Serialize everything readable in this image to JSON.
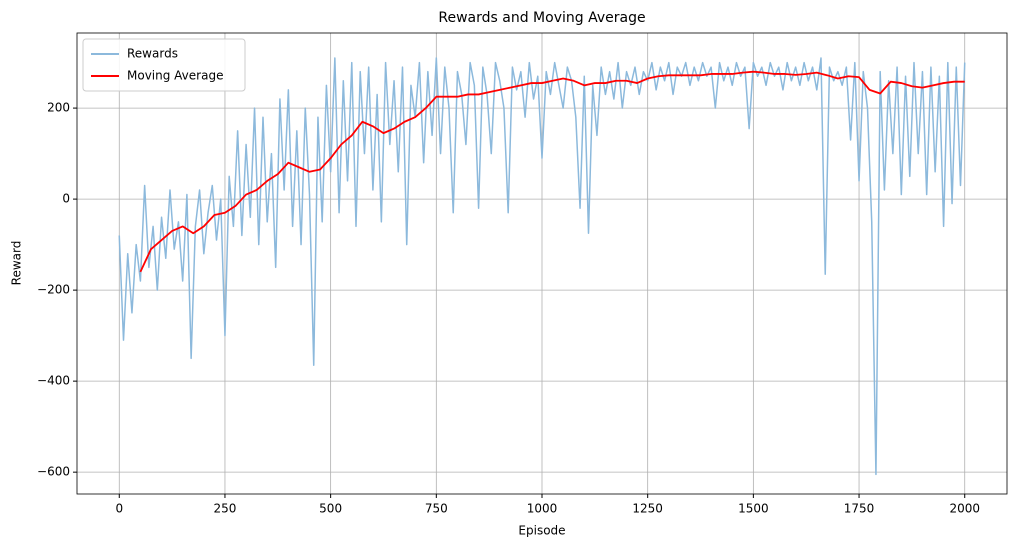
{
  "chart_data": {
    "type": "line",
    "title": "Rewards and Moving Average",
    "x_label": "Episode",
    "y_label": "Reward",
    "xlim": [
      -100,
      2100
    ],
    "ylim": [
      -648,
      365
    ],
    "xticks": [
      0,
      250,
      500,
      750,
      1000,
      1250,
      1500,
      1750,
      2000
    ],
    "yticks": [
      {
        "value": -600,
        "label": "−600"
      },
      {
        "value": -400,
        "label": "−400"
      },
      {
        "value": -200,
        "label": "−200"
      },
      0,
      200
    ],
    "grid": true,
    "legend": "upper-left",
    "series": [
      {
        "name": "Rewards",
        "color": "#8cb9dc",
        "x": [
          0,
          10,
          20,
          30,
          40,
          50,
          60,
          70,
          80,
          90,
          100,
          110,
          120,
          130,
          140,
          150,
          160,
          170,
          180,
          190,
          200,
          210,
          220,
          230,
          240,
          250,
          260,
          270,
          280,
          290,
          300,
          310,
          320,
          330,
          340,
          350,
          360,
          370,
          380,
          390,
          400,
          410,
          420,
          430,
          440,
          450,
          460,
          470,
          480,
          490,
          500,
          510,
          520,
          530,
          540,
          550,
          560,
          570,
          580,
          590,
          600,
          610,
          620,
          630,
          640,
          650,
          660,
          670,
          680,
          690,
          700,
          710,
          720,
          730,
          740,
          750,
          760,
          770,
          780,
          790,
          800,
          810,
          820,
          830,
          840,
          850,
          860,
          870,
          880,
          890,
          900,
          910,
          920,
          930,
          940,
          950,
          960,
          970,
          980,
          990,
          1000,
          1010,
          1020,
          1030,
          1040,
          1050,
          1060,
          1070,
          1080,
          1090,
          1100,
          1110,
          1120,
          1130,
          1140,
          1150,
          1160,
          1170,
          1180,
          1190,
          1200,
          1210,
          1220,
          1230,
          1240,
          1250,
          1260,
          1270,
          1280,
          1290,
          1300,
          1310,
          1320,
          1330,
          1340,
          1350,
          1360,
          1370,
          1380,
          1390,
          1400,
          1410,
          1420,
          1430,
          1440,
          1450,
          1460,
          1470,
          1480,
          1490,
          1500,
          1510,
          1520,
          1530,
          1540,
          1550,
          1560,
          1570,
          1580,
          1590,
          1600,
          1610,
          1620,
          1630,
          1640,
          1650,
          1660,
          1670,
          1680,
          1690,
          1700,
          1710,
          1720,
          1730,
          1740,
          1750,
          1760,
          1770,
          1780,
          1790,
          1800,
          1810,
          1820,
          1830,
          1840,
          1850,
          1860,
          1870,
          1880,
          1890,
          1900,
          1910,
          1920,
          1930,
          1940,
          1950,
          1960,
          1970,
          1980,
          1990,
          2000
        ],
        "values": [
          -80,
          -310,
          -120,
          -250,
          -100,
          -180,
          30,
          -150,
          -60,
          -200,
          -40,
          -130,
          20,
          -110,
          -50,
          -180,
          10,
          -350,
          -60,
          20,
          -120,
          -30,
          30,
          -90,
          0,
          -300,
          50,
          -60,
          150,
          -80,
          120,
          -40,
          200,
          -100,
          180,
          -50,
          100,
          -150,
          220,
          20,
          240,
          -60,
          150,
          -100,
          200,
          10,
          -365,
          180,
          -50,
          250,
          60,
          310,
          -30,
          260,
          40,
          300,
          -60,
          280,
          100,
          290,
          20,
          230,
          -50,
          300,
          120,
          260,
          60,
          290,
          -100,
          250,
          180,
          300,
          80,
          280,
          140,
          310,
          100,
          290,
          200,
          -30,
          280,
          230,
          120,
          300,
          250,
          -20,
          290,
          230,
          100,
          300,
          260,
          200,
          -30,
          290,
          240,
          280,
          180,
          300,
          220,
          270,
          90,
          280,
          230,
          300,
          250,
          200,
          290,
          260,
          180,
          -20,
          270,
          -75,
          250,
          140,
          290,
          230,
          280,
          220,
          300,
          200,
          280,
          250,
          290,
          230,
          280,
          260,
          300,
          240,
          290,
          260,
          300,
          230,
          290,
          270,
          300,
          250,
          290,
          260,
          300,
          270,
          290,
          200,
          300,
          260,
          290,
          250,
          300,
          270,
          290,
          155,
          300,
          270,
          290,
          250,
          300,
          270,
          290,
          240,
          300,
          260,
          290,
          250,
          300,
          260,
          290,
          240,
          310,
          -165,
          290,
          260,
          280,
          250,
          290,
          130,
          300,
          40,
          280,
          200,
          -50,
          -605,
          280,
          20,
          260,
          100,
          290,
          10,
          270,
          50,
          300,
          100,
          280,
          10,
          290,
          60,
          270,
          -60,
          300,
          -10,
          290,
          30,
          300
        ]
      },
      {
        "name": "Moving Average",
        "color": "#ff0000",
        "x": [
          50,
          75,
          100,
          125,
          150,
          175,
          200,
          225,
          250,
          275,
          300,
          325,
          350,
          375,
          400,
          425,
          450,
          475,
          500,
          525,
          550,
          575,
          600,
          625,
          650,
          675,
          700,
          725,
          750,
          775,
          800,
          825,
          850,
          875,
          900,
          925,
          950,
          975,
          1000,
          1025,
          1050,
          1075,
          1100,
          1125,
          1150,
          1175,
          1200,
          1225,
          1250,
          1275,
          1300,
          1325,
          1350,
          1375,
          1400,
          1425,
          1450,
          1475,
          1500,
          1525,
          1550,
          1575,
          1600,
          1625,
          1650,
          1675,
          1700,
          1725,
          1750,
          1775,
          1800,
          1825,
          1850,
          1875,
          1900,
          1925,
          1950,
          1975,
          2000
        ],
        "values": [
          -160,
          -110,
          -90,
          -70,
          -60,
          -75,
          -60,
          -35,
          -30,
          -15,
          10,
          20,
          40,
          55,
          80,
          70,
          60,
          65,
          90,
          120,
          140,
          170,
          160,
          145,
          155,
          170,
          180,
          200,
          225,
          225,
          225,
          230,
          230,
          235,
          240,
          245,
          250,
          255,
          255,
          260,
          265,
          260,
          250,
          255,
          255,
          260,
          260,
          255,
          265,
          270,
          272,
          272,
          272,
          272,
          275,
          275,
          275,
          278,
          280,
          278,
          275,
          275,
          273,
          275,
          278,
          272,
          265,
          270,
          268,
          240,
          232,
          258,
          255,
          248,
          245,
          250,
          255,
          258,
          258
        ]
      }
    ]
  }
}
